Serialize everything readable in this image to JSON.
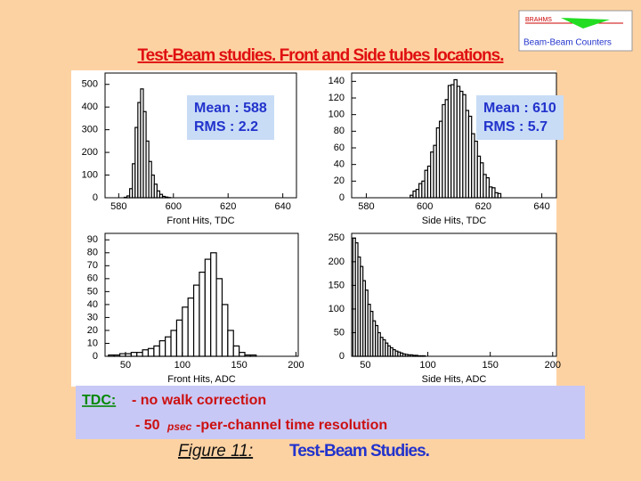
{
  "logo": {
    "title": "BRAHMS",
    "subtitle": "Beam-Beam Counters"
  },
  "title": "Test-Beam studies. Front and Side tubes locations.",
  "chart_data": [
    {
      "type": "histogram",
      "x_label": "Front Hits, TDC",
      "annotation": [
        "Mean : 588",
        "RMS : 2.2"
      ],
      "bins": [
        580,
        581,
        582,
        583,
        584,
        585,
        586,
        587,
        588,
        589,
        590,
        591,
        592,
        593,
        594,
        595,
        596,
        597,
        598,
        599,
        600
      ],
      "values": [
        0,
        0,
        2,
        8,
        40,
        150,
        310,
        420,
        480,
        380,
        250,
        160,
        100,
        60,
        30,
        15,
        6,
        3,
        1,
        0
      ],
      "xlim": [
        575,
        645
      ],
      "xticks": [
        580,
        600,
        620,
        640
      ],
      "ylim": [
        0,
        550
      ],
      "yticks": [
        0,
        100,
        200,
        300,
        400,
        500
      ]
    },
    {
      "type": "histogram",
      "x_label": "Side Hits, TDC",
      "annotation": [
        "Mean : 610",
        "RMS : 5.7"
      ],
      "bins": [
        595,
        596,
        597,
        598,
        599,
        600,
        601,
        602,
        603,
        604,
        605,
        606,
        607,
        608,
        609,
        610,
        611,
        612,
        613,
        614,
        615,
        616,
        617,
        618,
        619,
        620,
        621,
        622,
        623,
        624,
        625,
        626
      ],
      "values": [
        3,
        8,
        10,
        17,
        20,
        33,
        38,
        55,
        63,
        84,
        92,
        112,
        118,
        135,
        136,
        142,
        134,
        128,
        124,
        105,
        98,
        77,
        68,
        50,
        42,
        28,
        24,
        13,
        12,
        6,
        5
      ],
      "xlim": [
        575,
        645
      ],
      "xticks": [
        580,
        600,
        620,
        640
      ],
      "ylim": [
        0,
        150
      ],
      "yticks": [
        0,
        20,
        40,
        60,
        80,
        100,
        120,
        140
      ]
    },
    {
      "type": "histogram",
      "x_label": "Front Hits, ADC",
      "bins": [
        35,
        40,
        45,
        50,
        55,
        60,
        65,
        70,
        75,
        80,
        85,
        90,
        95,
        100,
        105,
        110,
        115,
        120,
        125,
        130,
        135,
        140,
        145,
        150,
        155,
        160,
        165
      ],
      "values": [
        1,
        1,
        2,
        2,
        3,
        3,
        5,
        6,
        8,
        12,
        15,
        20,
        28,
        38,
        45,
        55,
        65,
        75,
        80,
        60,
        40,
        20,
        8,
        3,
        1,
        1
      ],
      "xlim": [
        32,
        202
      ],
      "xticks": [
        50,
        100,
        150,
        200
      ],
      "ylim": [
        0,
        95
      ],
      "yticks": [
        0,
        10,
        20,
        30,
        40,
        50,
        60,
        70,
        80,
        90
      ]
    },
    {
      "type": "histogram",
      "x_label": "Side Hits, ADC",
      "bins": [
        40,
        42,
        44,
        46,
        48,
        50,
        52,
        54,
        56,
        58,
        60,
        62,
        64,
        66,
        68,
        70,
        72,
        74,
        76,
        78,
        80,
        82,
        84,
        86,
        88,
        90,
        92,
        94,
        96,
        98,
        100
      ],
      "values": [
        250,
        240,
        210,
        190,
        160,
        140,
        110,
        95,
        75,
        65,
        50,
        40,
        35,
        28,
        22,
        18,
        14,
        11,
        9,
        7,
        5,
        4,
        3,
        3,
        2,
        2,
        1,
        1,
        1,
        0
      ],
      "xlim": [
        39,
        203
      ],
      "xticks": [
        50,
        100,
        150,
        200
      ],
      "ylim": [
        0,
        260
      ],
      "yticks": [
        0,
        50,
        100,
        150,
        200,
        250
      ]
    }
  ],
  "notes": {
    "label": "TDC:",
    "line1": "- no walk correction",
    "line2": [
      "- 50",
      "psec",
      "-per-channel time resolution"
    ]
  },
  "caption": {
    "figure": "Figure 11:",
    "text": "Test-Beam Studies."
  }
}
